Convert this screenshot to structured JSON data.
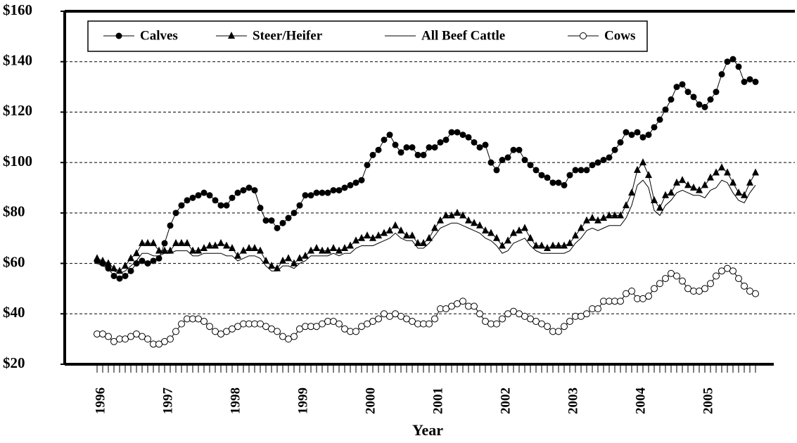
{
  "chart_data": {
    "type": "line",
    "x_label": "Year",
    "categories": [
      "1996",
      null,
      null,
      null,
      null,
      null,
      null,
      null,
      null,
      null,
      null,
      null,
      "1997",
      null,
      null,
      null,
      null,
      null,
      null,
      null,
      null,
      null,
      null,
      null,
      "1998",
      null,
      null,
      null,
      null,
      null,
      null,
      null,
      null,
      null,
      null,
      null,
      "1999",
      null,
      null,
      null,
      null,
      null,
      null,
      null,
      null,
      null,
      null,
      null,
      "2000",
      null,
      null,
      null,
      null,
      null,
      null,
      null,
      null,
      null,
      null,
      null,
      "2001",
      null,
      null,
      null,
      null,
      null,
      null,
      null,
      null,
      null,
      null,
      null,
      "2002",
      null,
      null,
      null,
      null,
      null,
      null,
      null,
      null,
      null,
      null,
      null,
      "2003",
      null,
      null,
      null,
      null,
      null,
      null,
      null,
      null,
      null,
      null,
      null,
      "2004",
      null,
      null,
      null,
      null,
      null,
      null,
      null,
      null,
      null,
      null,
      null,
      "2005",
      null,
      null,
      null,
      null,
      null,
      null,
      null,
      null,
      null
    ],
    "series": [
      {
        "name": "Calves",
        "color": "#000000",
        "marker": "circle",
        "values": [
          61,
          60,
          58,
          55,
          54,
          55,
          57,
          60,
          61,
          60,
          61,
          62,
          68,
          75,
          80,
          83,
          85,
          86,
          87,
          88,
          87,
          85,
          83,
          83,
          86,
          88,
          89,
          90,
          89,
          82,
          77,
          77,
          74,
          76,
          78,
          80,
          83,
          87,
          87,
          88,
          88,
          88,
          89,
          89,
          90,
          91,
          92,
          93,
          99,
          103,
          105,
          109,
          111,
          107,
          104,
          106,
          106,
          103,
          103,
          106,
          106,
          108,
          109,
          112,
          112,
          111,
          110,
          108,
          106,
          107,
          100,
          97,
          101,
          102,
          105,
          105,
          101,
          99,
          97,
          95,
          94,
          92,
          92,
          91,
          95,
          97,
          97,
          97,
          99,
          100,
          101,
          102,
          105,
          108,
          112,
          111,
          112,
          110,
          111,
          114,
          117,
          121,
          125,
          130,
          131,
          128,
          126,
          123,
          122,
          125,
          128,
          135,
          140,
          141,
          138,
          132,
          133,
          132
        ]
      },
      {
        "name": "Steer/Heifer",
        "color": "#000000",
        "marker": "triangle",
        "values": [
          62,
          61,
          60,
          58,
          57,
          59,
          62,
          64,
          68,
          68,
          68,
          65,
          65,
          65,
          68,
          68,
          68,
          65,
          65,
          66,
          67,
          67,
          68,
          67,
          66,
          63,
          65,
          66,
          66,
          65,
          61,
          59,
          58,
          61,
          62,
          60,
          62,
          63,
          65,
          66,
          65,
          65,
          66,
          65,
          66,
          67,
          69,
          70,
          71,
          70,
          71,
          72,
          73,
          75,
          73,
          71,
          71,
          68,
          68,
          70,
          74,
          77,
          79,
          79,
          80,
          79,
          77,
          76,
          75,
          73,
          72,
          70,
          67,
          69,
          72,
          73,
          74,
          70,
          67,
          67,
          66,
          67,
          67,
          67,
          68,
          71,
          74,
          77,
          78,
          77,
          78,
          79,
          79,
          79,
          83,
          88,
          97,
          100,
          95,
          85,
          82,
          87,
          88,
          92,
          93,
          91,
          90,
          89,
          91,
          94,
          96,
          98,
          96,
          92,
          88,
          87,
          92,
          96
        ]
      },
      {
        "name": "All Beef Cattle",
        "color": "#000000",
        "marker": "none",
        "values": [
          60,
          59,
          58,
          57,
          56,
          57,
          59,
          61,
          64,
          64,
          63,
          63,
          64,
          64,
          65,
          65,
          65,
          63,
          63,
          64,
          64,
          64,
          64,
          63,
          63,
          61,
          62,
          63,
          63,
          62,
          59,
          57,
          57,
          59,
          59,
          58,
          60,
          61,
          63,
          63,
          63,
          63,
          64,
          63,
          64,
          64,
          66,
          67,
          67,
          67,
          68,
          69,
          70,
          72,
          70,
          69,
          69,
          66,
          66,
          68,
          71,
          74,
          75,
          76,
          76,
          75,
          74,
          73,
          72,
          70,
          69,
          67,
          64,
          65,
          68,
          69,
          70,
          67,
          65,
          64,
          64,
          64,
          64,
          64,
          65,
          68,
          70,
          73,
          74,
          73,
          74,
          75,
          75,
          75,
          78,
          83,
          91,
          93,
          90,
          81,
          79,
          83,
          85,
          88,
          89,
          88,
          87,
          87,
          86,
          89,
          90,
          93,
          92,
          88,
          85,
          84,
          88,
          91
        ]
      },
      {
        "name": "Cows",
        "color": "#000000",
        "marker": "open-circle",
        "values": [
          32,
          32,
          31,
          29,
          30,
          30,
          31,
          32,
          31,
          30,
          28,
          28,
          29,
          30,
          33,
          36,
          38,
          38,
          38,
          37,
          35,
          33,
          32,
          33,
          34,
          35,
          36,
          36,
          36,
          36,
          35,
          34,
          33,
          31,
          30,
          31,
          34,
          35,
          35,
          35,
          36,
          37,
          37,
          36,
          34,
          33,
          33,
          35,
          36,
          37,
          38,
          40,
          39,
          40,
          39,
          38,
          37,
          36,
          36,
          36,
          38,
          42,
          42,
          43,
          44,
          45,
          43,
          43,
          40,
          37,
          36,
          36,
          38,
          40,
          41,
          40,
          39,
          38,
          37,
          36,
          35,
          33,
          33,
          35,
          37,
          39,
          39,
          40,
          42,
          42,
          45,
          45,
          45,
          45,
          48,
          49,
          46,
          46,
          47,
          50,
          52,
          54,
          56,
          55,
          53,
          50,
          49,
          49,
          50,
          52,
          55,
          57,
          58,
          57,
          54,
          51,
          49,
          48
        ]
      }
    ],
    "ylim": [
      20,
      160
    ],
    "yticks": [
      {
        "value": 20,
        "label": "$20"
      },
      {
        "value": 40,
        "label": "$40"
      },
      {
        "value": 60,
        "label": "$60"
      },
      {
        "value": 80,
        "label": "$80"
      },
      {
        "value": 100,
        "label": "$100"
      },
      {
        "value": 120,
        "label": "$120"
      },
      {
        "value": 140,
        "label": "$140"
      },
      {
        "value": 160,
        "label": "$160"
      }
    ],
    "grid": true,
    "legend": "top-left"
  }
}
